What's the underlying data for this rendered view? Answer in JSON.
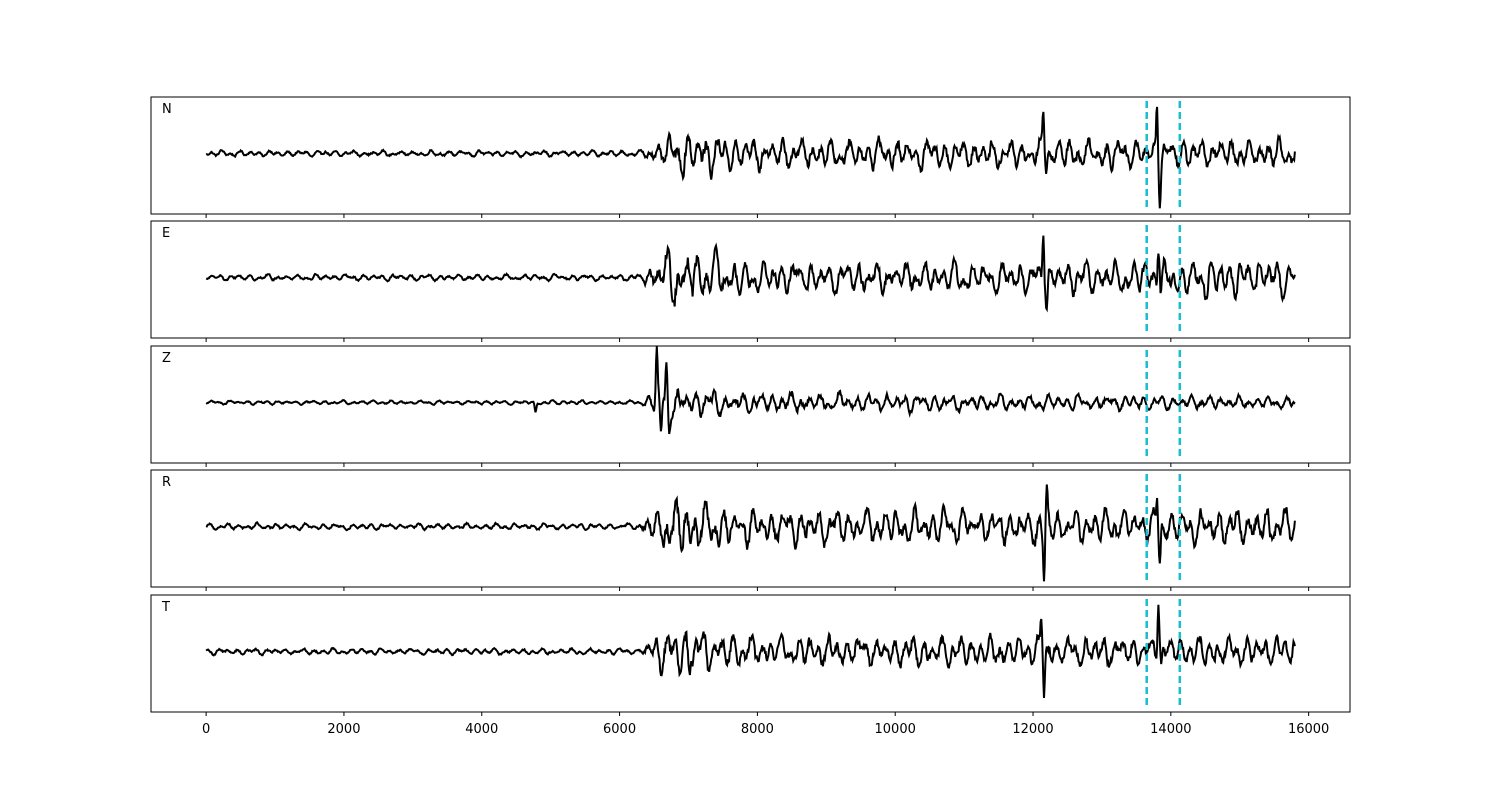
{
  "chart_data": {
    "type": "line",
    "title": "",
    "xlabel": "",
    "ylabel": "",
    "xlim": [
      -800,
      16600
    ],
    "xticks": [
      0,
      2000,
      4000,
      6000,
      8000,
      10000,
      12000,
      14000,
      16000
    ],
    "xtick_labels": [
      "0",
      "2000",
      "4000",
      "6000",
      "8000",
      "10000",
      "12000",
      "14000",
      "16000"
    ],
    "x_range": [
      0,
      15800
    ],
    "grid": false,
    "shared_x_axis": true,
    "series_color": "#000000",
    "marker_color": "#17becf",
    "vertical_markers": [
      13650,
      14130
    ],
    "panels": [
      {
        "label": "N",
        "noise_amp": 0.06,
        "envelope": [
          [
            0,
            0.06
          ],
          [
            6300,
            0.06
          ],
          [
            6500,
            0.2
          ],
          [
            6800,
            0.35
          ],
          [
            7000,
            0.45
          ],
          [
            7200,
            0.42
          ],
          [
            7400,
            0.35
          ],
          [
            8000,
            0.3
          ],
          [
            12000,
            0.3
          ],
          [
            13500,
            0.3
          ],
          [
            15800,
            0.3
          ]
        ],
        "spikes": [
          [
            12150,
            0.8
          ],
          [
            12190,
            -0.2
          ],
          [
            13800,
            1.0
          ],
          [
            13840,
            -0.8
          ]
        ]
      },
      {
        "label": "E",
        "noise_amp": 0.06,
        "envelope": [
          [
            0,
            0.06
          ],
          [
            6300,
            0.06
          ],
          [
            6500,
            0.35
          ],
          [
            6700,
            0.6
          ],
          [
            7200,
            0.5
          ],
          [
            7500,
            0.4
          ],
          [
            8000,
            0.3
          ],
          [
            12000,
            0.3
          ],
          [
            13500,
            0.35
          ],
          [
            15800,
            0.4
          ]
        ],
        "spikes": [
          [
            12150,
            1.0
          ],
          [
            12200,
            -0.5
          ],
          [
            13820,
            0.7
          ],
          [
            13860,
            -0.4
          ]
        ]
      },
      {
        "label": "Z",
        "noise_amp": 0.04,
        "envelope": [
          [
            0,
            0.04
          ],
          [
            6300,
            0.04
          ],
          [
            6500,
            0.22
          ],
          [
            6800,
            0.3
          ],
          [
            7300,
            0.25
          ],
          [
            8000,
            0.2
          ],
          [
            12000,
            0.15
          ],
          [
            15800,
            0.12
          ]
        ],
        "spikes": [
          [
            4780,
            -0.2
          ],
          [
            6540,
            1.0
          ],
          [
            6600,
            -0.6
          ],
          [
            6680,
            0.75
          ],
          [
            6720,
            -0.5
          ]
        ]
      },
      {
        "label": "R",
        "noise_amp": 0.06,
        "envelope": [
          [
            0,
            0.06
          ],
          [
            6300,
            0.06
          ],
          [
            6500,
            0.45
          ],
          [
            6800,
            0.55
          ],
          [
            7200,
            0.55
          ],
          [
            7400,
            0.45
          ],
          [
            8000,
            0.35
          ],
          [
            12000,
            0.35
          ],
          [
            13500,
            0.35
          ],
          [
            15800,
            0.35
          ]
        ],
        "spikes": [
          [
            12160,
            -1.0
          ],
          [
            12200,
            0.6
          ],
          [
            13800,
            0.55
          ],
          [
            13840,
            -0.7
          ]
        ]
      },
      {
        "label": "T",
        "noise_amp": 0.06,
        "envelope": [
          [
            0,
            0.06
          ],
          [
            6300,
            0.06
          ],
          [
            6500,
            0.35
          ],
          [
            6900,
            0.5
          ],
          [
            7200,
            0.45
          ],
          [
            7500,
            0.38
          ],
          [
            8000,
            0.3
          ],
          [
            12000,
            0.3
          ],
          [
            13500,
            0.3
          ],
          [
            15800,
            0.3
          ]
        ],
        "spikes": [
          [
            12120,
            0.6
          ],
          [
            12160,
            -0.8
          ],
          [
            13820,
            1.0
          ],
          [
            13860,
            -0.3
          ]
        ]
      }
    ]
  }
}
